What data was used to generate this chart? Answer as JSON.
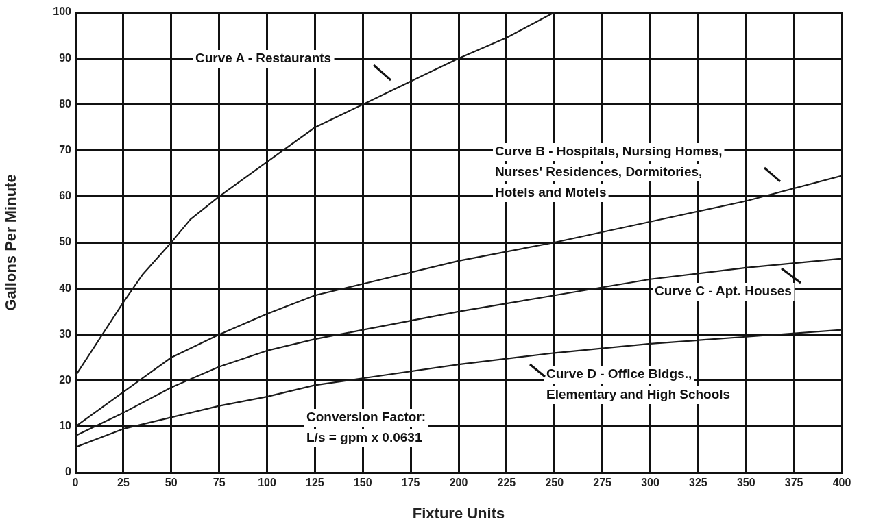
{
  "chart_data": {
    "type": "line",
    "xlabel": "Fixture Units",
    "ylabel": "Gallons Per Minute",
    "xlim": [
      0,
      400
    ],
    "xticks": [
      0,
      25,
      50,
      75,
      100,
      125,
      150,
      175,
      200,
      225,
      250,
      275,
      300,
      325,
      350,
      375,
      400
    ],
    "ylim": [
      0,
      100
    ],
    "yticks": [
      0,
      10,
      20,
      30,
      40,
      50,
      60,
      70,
      80,
      90,
      100
    ],
    "grid": true,
    "marker": "none",
    "line_style": "solid",
    "series": [
      {
        "color": "#1a1a1a",
        "x": [
          0,
          25,
          35,
          50,
          60,
          75,
          100,
          125,
          150,
          175,
          200,
          225,
          250
        ],
        "values": [
          21,
          37,
          43,
          50,
          55,
          60,
          67.5,
          75,
          80,
          85,
          90,
          94.5,
          100
        ]
      },
      {
        "color": "#1a1a1a",
        "x": [
          0,
          25,
          40,
          50,
          75,
          100,
          125,
          150,
          200,
          250,
          300,
          350,
          400
        ],
        "values": [
          10,
          17.5,
          22,
          25,
          30,
          34.5,
          38.5,
          41,
          46,
          50,
          54.5,
          59,
          64.5
        ]
      },
      {
        "color": "#1a1a1a",
        "x": [
          0,
          25,
          50,
          75,
          100,
          125,
          150,
          200,
          250,
          300,
          350,
          400
        ],
        "values": [
          8,
          13,
          18.5,
          23,
          26.5,
          29,
          31,
          35,
          38.5,
          42,
          44.5,
          46.5
        ]
      },
      {
        "color": "#1a1a1a",
        "x": [
          0,
          25,
          50,
          75,
          100,
          125,
          150,
          200,
          250,
          300,
          350,
          400
        ],
        "values": [
          5.5,
          9.5,
          12,
          14.5,
          16.5,
          19,
          20.5,
          23.5,
          26,
          28,
          29.5,
          31
        ]
      }
    ],
    "annotations": [
      "Curve A - Restaurants",
      "Curve B - Hospitals, Nursing Homes,\nNurses' Residences, Dormitories,\nHotels and Motels",
      "Curve C - Apt. Houses",
      "Curve D - Office Bldgs.,\nElementary and High Schools",
      "Conversion Factor:\nL/s = gpm x 0.0631"
    ]
  }
}
